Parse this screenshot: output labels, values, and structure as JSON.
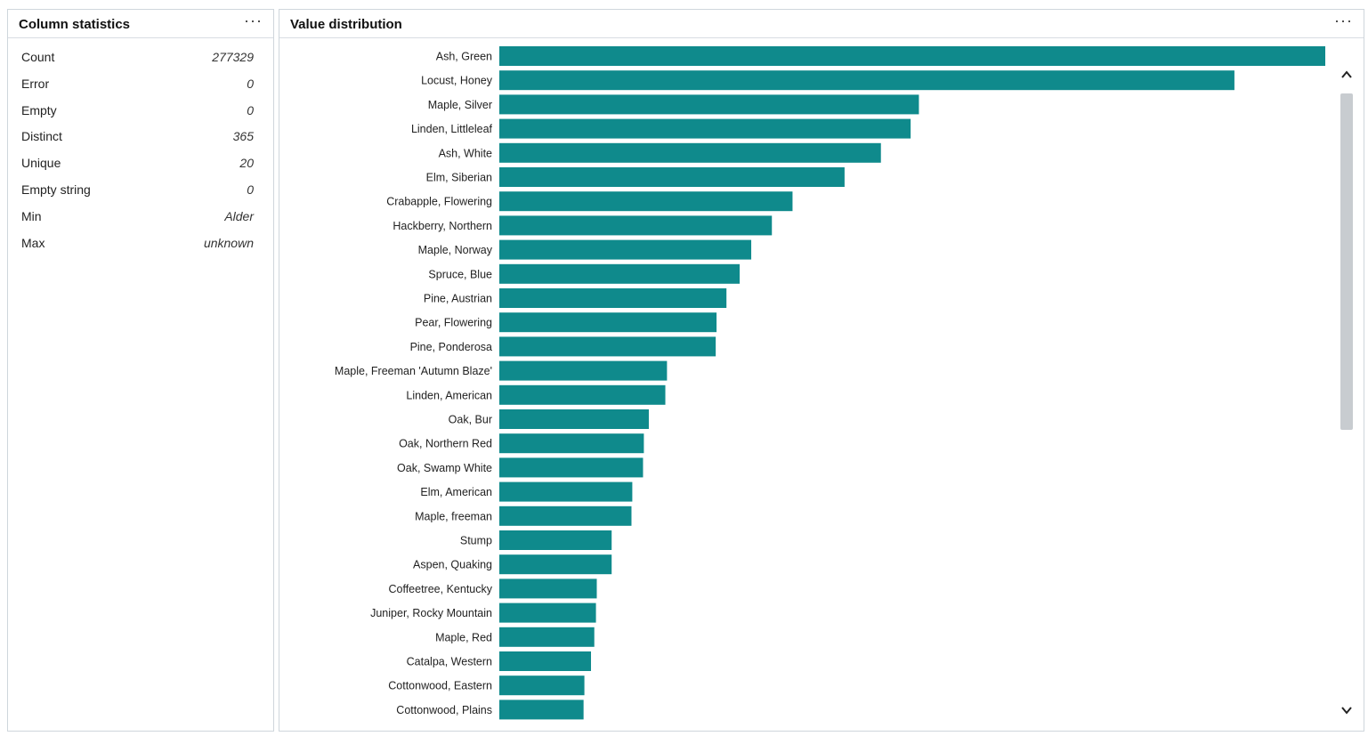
{
  "column_statistics": {
    "title": "Column statistics",
    "menu": "···",
    "rows": [
      {
        "label": "Count",
        "value": "277329"
      },
      {
        "label": "Error",
        "value": "0"
      },
      {
        "label": "Empty",
        "value": "0"
      },
      {
        "label": "Distinct",
        "value": "365"
      },
      {
        "label": "Unique",
        "value": "20"
      },
      {
        "label": "Empty string",
        "value": "0"
      },
      {
        "label": "Min",
        "value": "Alder"
      },
      {
        "label": "Max",
        "value": "unknown"
      }
    ]
  },
  "value_distribution": {
    "title": "Value distribution",
    "menu": "···"
  },
  "colors": {
    "bar": "#0f8a8c",
    "scroll_thumb": "#c8ccd0"
  },
  "icons": {
    "scroll_up": "chevron-up-icon",
    "scroll_down": "chevron-down-icon",
    "menu": "ellipsis-icon"
  },
  "chart_data": {
    "type": "bar",
    "orientation": "horizontal",
    "title": "",
    "xlabel": "",
    "ylabel": "",
    "grid": false,
    "xlim": [
      0,
      100
    ],
    "categories": [
      "Ash, Green",
      "Locust, Honey",
      "Maple, Silver",
      "Linden, Littleleaf",
      "Ash, White",
      "Elm, Siberian",
      "Crabapple, Flowering",
      "Hackberry, Northern",
      "Maple, Norway",
      "Spruce, Blue",
      "Pine, Austrian",
      "Pear, Flowering",
      "Pine, Ponderosa",
      "Maple, Freeman 'Autumn Blaze'",
      "Linden, American",
      "Oak, Bur",
      "Oak, Northern Red",
      "Oak, Swamp White",
      "Elm, American",
      "Maple, freeman",
      "Stump",
      "Aspen, Quaking",
      "Coffeetree, Kentucky",
      "Juniper, Rocky Mountain",
      "Maple, Red",
      "Catalpa, Western",
      "Cottonwood, Eastern",
      "Cottonwood, Plains"
    ],
    "values": [
      100,
      89,
      50.8,
      49.8,
      46.2,
      41.8,
      35.5,
      33,
      30.5,
      29.1,
      27.5,
      26.3,
      26.2,
      20.3,
      20.1,
      18.1,
      17.5,
      17.4,
      16.1,
      16,
      13.6,
      13.6,
      11.8,
      11.7,
      11.5,
      11.1,
      10.3,
      10.2
    ]
  }
}
